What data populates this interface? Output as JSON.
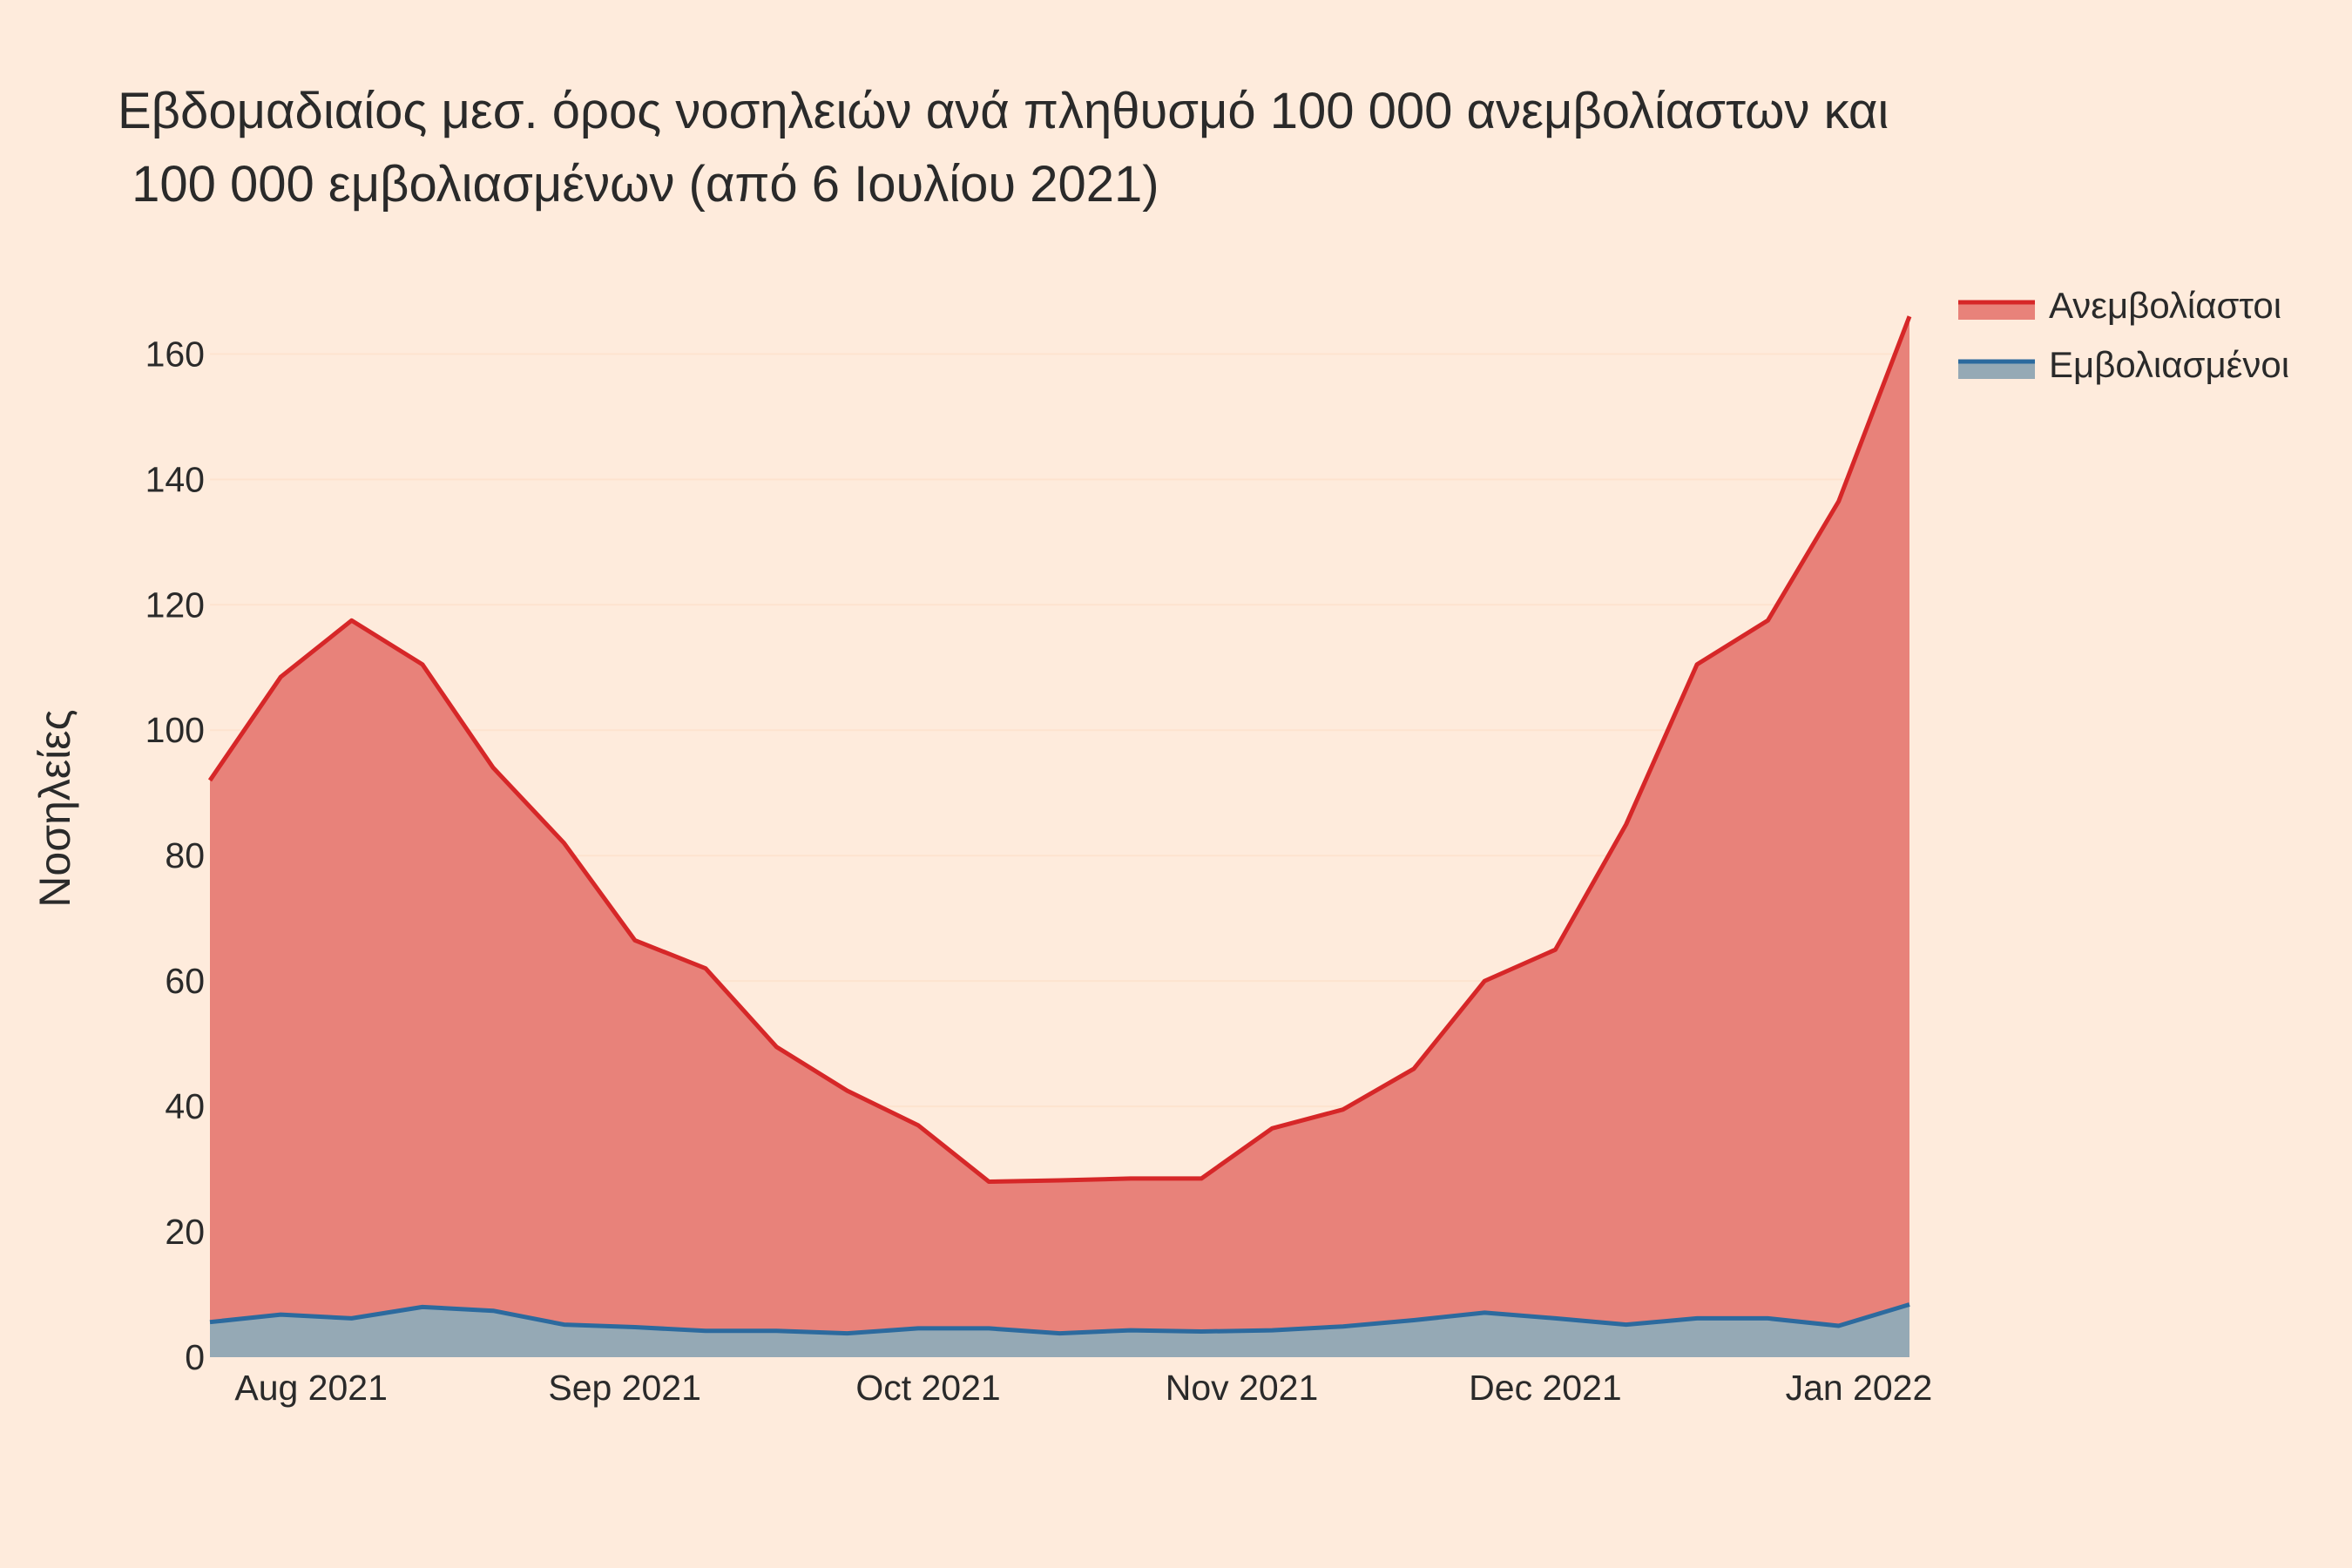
{
  "chart_data": {
    "type": "area",
    "title_lines": [
      "Εβδομαδιαίος μεσ. όρος νοσηλειών ανά πληθυσμό 100 000 ανεμβολίαστων και",
      " 100 000 εμβολιασμένων (από 6 Ιουλίου 2021)"
    ],
    "ylabel": "Νοσηλείες",
    "xlabel": "",
    "ylim": [
      0,
      167
    ],
    "yticks": [
      0,
      20,
      40,
      60,
      80,
      100,
      120,
      140,
      160
    ],
    "x_range": [
      "2021-07-22",
      "2022-01-06"
    ],
    "xticks": [
      {
        "date": "2021-08-01",
        "label": "Aug 2021"
      },
      {
        "date": "2021-09-01",
        "label": "Sep 2021"
      },
      {
        "date": "2021-10-01",
        "label": "Oct 2021"
      },
      {
        "date": "2021-11-01",
        "label": "Nov 2021"
      },
      {
        "date": "2021-12-01",
        "label": "Dec 2021"
      },
      {
        "date": "2022-01-01",
        "label": "Jan 2022"
      }
    ],
    "x": [
      "2021-07-22",
      "2021-07-29",
      "2021-08-05",
      "2021-08-12",
      "2021-08-19",
      "2021-08-26",
      "2021-09-02",
      "2021-09-09",
      "2021-09-16",
      "2021-09-23",
      "2021-09-30",
      "2021-10-07",
      "2021-10-14",
      "2021-10-21",
      "2021-10-28",
      "2021-11-04",
      "2021-11-11",
      "2021-11-18",
      "2021-11-25",
      "2021-12-02",
      "2021-12-09",
      "2021-12-16",
      "2021-12-23",
      "2021-12-30",
      "2022-01-06"
    ],
    "series": [
      {
        "name": "Ανεμβολίαστοι",
        "line_color": "#d62728",
        "fill_color": "#e8827a",
        "values": [
          92,
          108.5,
          117.5,
          110.5,
          94,
          82,
          66.5,
          62,
          49.5,
          42.5,
          37,
          28,
          28.2,
          28.5,
          28.5,
          36.5,
          39.5,
          46,
          60,
          65,
          85,
          110.5,
          117.5,
          136.5,
          166
        ]
      },
      {
        "name": "Εμβολιασμένοι",
        "line_color": "#2c6a9e",
        "fill_color": "#95a9b5",
        "values": [
          5.6,
          6.8,
          6.2,
          8.0,
          7.4,
          5.2,
          4.8,
          4.2,
          4.2,
          3.8,
          4.6,
          4.6,
          3.8,
          4.3,
          4.1,
          4.3,
          4.9,
          5.9,
          7.1,
          6.2,
          5.2,
          6.2,
          6.2,
          5.0,
          8.4
        ]
      }
    ],
    "legend_position": "top-right",
    "grid": true
  }
}
